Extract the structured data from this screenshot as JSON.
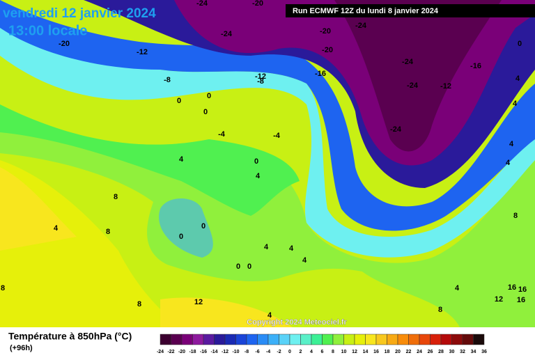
{
  "header": {
    "title": "vendredi 12 janvier 2024",
    "time": "13:00 locale",
    "run": "Run ECMWF 12Z du lundi 8 janvier 2024"
  },
  "map": {
    "labels": [
      "-24",
      "-20",
      "-20",
      "-12",
      "-24",
      "-20",
      "-20",
      "-24",
      "-24",
      "-24",
      "-24",
      "-12",
      "-16",
      "0",
      "-16",
      "-12",
      "-8",
      "-8",
      "0",
      "0",
      "0",
      "-4",
      "-4",
      "4",
      "0",
      "4",
      "8",
      "4",
      "8",
      "0",
      "0",
      "0",
      "0",
      "4",
      "4",
      "4",
      "4",
      "4",
      "4",
      "4",
      "8",
      "4",
      "8",
      "16",
      "16",
      "12",
      "16",
      "8",
      "8",
      "12",
      "4"
    ],
    "copyright": "Copyright 2024 Meteociel.fr"
  },
  "legend": {
    "title": "Température à 850hPa (°C)",
    "lead": "(+96h)",
    "ticks": [
      -24,
      -22,
      -20,
      -18,
      -16,
      -14,
      -12,
      -10,
      -8,
      -6,
      -4,
      -2,
      0,
      2,
      4,
      6,
      8,
      10,
      12,
      14,
      16,
      18,
      20,
      22,
      24,
      26,
      28,
      30,
      32,
      34,
      36
    ],
    "colors": [
      "#3c0030",
      "#5a0050",
      "#7a0078",
      "#8e1a9e",
      "#5a1aa0",
      "#2a1a9a",
      "#1a2ab4",
      "#1a44d8",
      "#1e64f0",
      "#2a8cf6",
      "#3cb0f8",
      "#5ad2f8",
      "#6ef0f0",
      "#5af0c8",
      "#3cf096",
      "#50f050",
      "#90f03c",
      "#c8f014",
      "#e6f00a",
      "#f8e61e",
      "#f8c81e",
      "#f8aa14",
      "#f88c0a",
      "#f06e0a",
      "#e8460a",
      "#d8200a",
      "#b40a0a",
      "#8c0a0a",
      "#640a0a",
      "#1a0a0a"
    ]
  }
}
